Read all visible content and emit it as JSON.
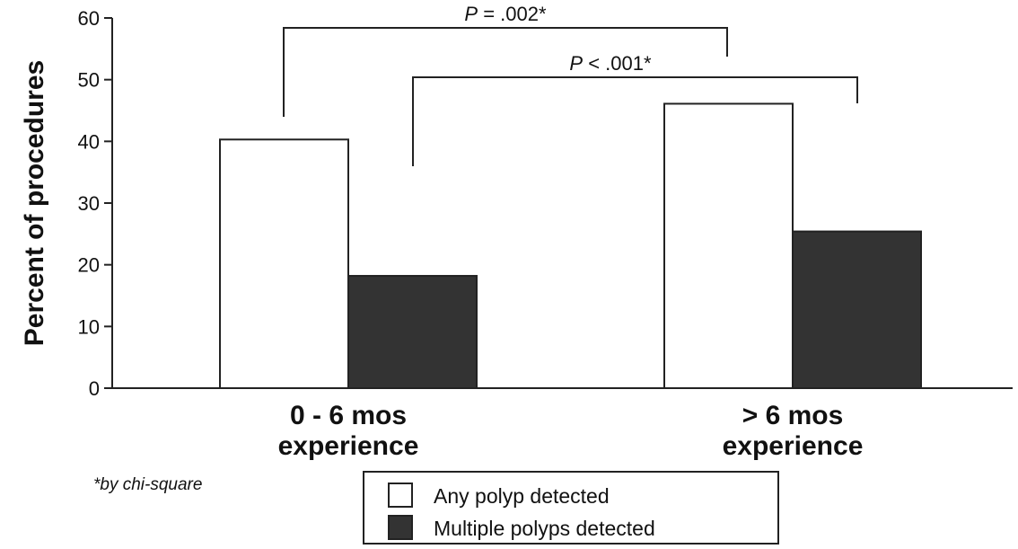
{
  "chart_data": {
    "type": "bar",
    "ylabel": "Percent of procedures",
    "ylim": [
      0,
      60
    ],
    "yticks": [
      "0",
      "10",
      "20",
      "30",
      "40",
      "50",
      "60"
    ],
    "categories": [
      [
        "0 - 6 mos",
        "experience"
      ],
      [
        "> 6 mos",
        "experience"
      ]
    ],
    "series": [
      {
        "name": "Any polyp detected",
        "values": [
          40.3,
          46.1
        ],
        "color": "#ffffff"
      },
      {
        "name": "Multiple polyps detected",
        "values": [
          18.2,
          25.4
        ],
        "color": "#333333"
      }
    ],
    "annotations": [
      {
        "p_label": "P",
        "text": " = .002*",
        "from": [
          0,
          0
        ],
        "to": [
          1,
          0
        ]
      },
      {
        "p_label": "P",
        "text": " < .001*",
        "from": [
          0,
          1
        ],
        "to": [
          1,
          1
        ]
      }
    ],
    "footnote": "*by chi-square",
    "legend_position": "bottom-center",
    "grid": false
  }
}
